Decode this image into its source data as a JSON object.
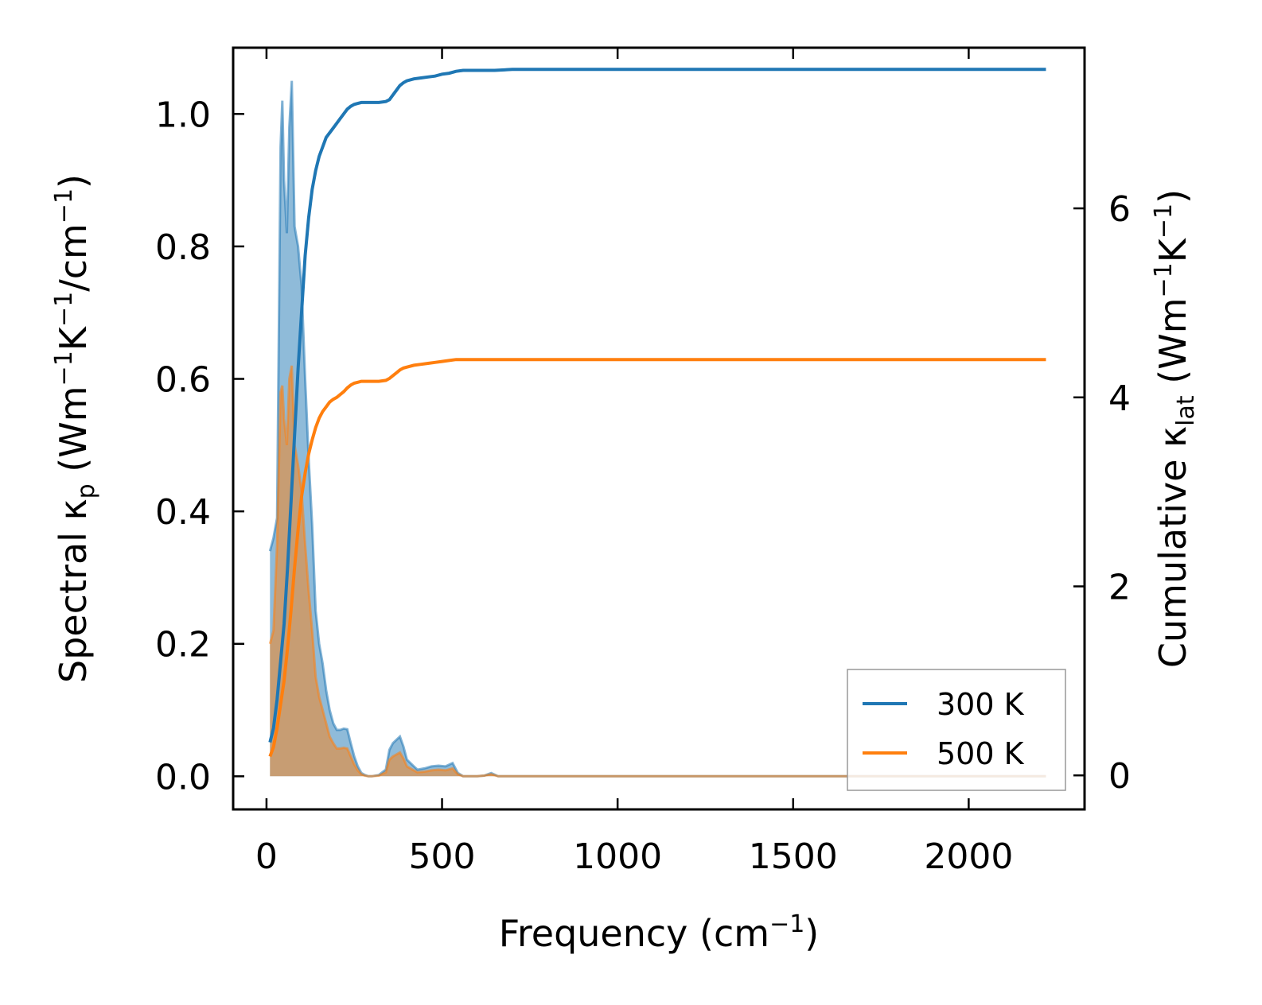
{
  "chart_data": {
    "type": "line",
    "xlabel": "Frequency (cm⁻¹)",
    "ylabel_left": "Spectral κₚ (Wm⁻¹K⁻¹/cm⁻¹)",
    "ylabel_right": "Cumulative κ_lat (Wm⁻¹K⁻¹)",
    "ylabel_left_parts": {
      "pre": "Spectral κ",
      "sub": "p",
      "post": " (Wm",
      "e1": "−1",
      "mid": "K",
      "e2": "−1",
      "end": "/cm",
      "e3": "−1",
      "close": ")"
    },
    "ylabel_right_parts": {
      "pre": "Cumulative κ",
      "sub": "lat",
      "post": " (Wm",
      "e1": "−1",
      "mid": "K",
      "e2": "−1",
      "close": ")"
    },
    "xlabel_parts": {
      "pre": "Frequency (cm",
      "e1": "−1",
      "close": ")"
    },
    "xlim": [
      -95,
      2330
    ],
    "ylim_left": [
      -0.05,
      1.1
    ],
    "ylim_right": [
      -0.36,
      7.7
    ],
    "xticks": [
      0,
      500,
      1000,
      1500,
      2000
    ],
    "yticks_left": [
      0.0,
      0.2,
      0.4,
      0.6,
      0.8,
      1.0
    ],
    "yticks_right": [
      0,
      2,
      4,
      6
    ],
    "legend": {
      "position": "lower-right",
      "entries": [
        "300 K",
        "500 K"
      ]
    },
    "colors": {
      "300 K": "#1f77b4",
      "500 K": "#ff7f0e"
    },
    "spectral": [
      {
        "name": "300 K",
        "x": [
          10,
          20,
          30,
          40,
          45,
          50,
          58,
          65,
          72,
          80,
          90,
          100,
          110,
          120,
          130,
          140,
          150,
          160,
          170,
          180,
          190,
          200,
          210,
          220,
          230,
          240,
          250,
          260,
          270,
          280,
          290,
          300,
          320,
          340,
          350,
          360,
          370,
          380,
          390,
          400,
          410,
          420,
          430,
          450,
          470,
          490,
          510,
          530,
          545,
          560,
          600,
          620,
          640,
          660,
          700,
          2220
        ],
        "y": [
          0.34,
          0.36,
          0.39,
          0.95,
          1.02,
          0.9,
          0.82,
          0.98,
          1.05,
          0.83,
          0.8,
          0.74,
          0.6,
          0.48,
          0.38,
          0.25,
          0.2,
          0.17,
          0.13,
          0.1,
          0.08,
          0.07,
          0.07,
          0.072,
          0.071,
          0.05,
          0.03,
          0.015,
          0.005,
          0.002,
          0.0,
          0.0,
          0.002,
          0.01,
          0.04,
          0.05,
          0.055,
          0.06,
          0.045,
          0.025,
          0.02,
          0.015,
          0.01,
          0.012,
          0.015,
          0.016,
          0.015,
          0.02,
          0.005,
          0.0,
          0.0,
          0.001,
          0.005,
          0.0,
          0.0,
          0.0
        ]
      },
      {
        "name": "500 K",
        "x": [
          10,
          20,
          30,
          40,
          45,
          50,
          58,
          65,
          72,
          80,
          90,
          100,
          110,
          120,
          130,
          140,
          150,
          160,
          170,
          180,
          190,
          200,
          210,
          220,
          230,
          240,
          250,
          260,
          270,
          280,
          290,
          300,
          320,
          340,
          350,
          360,
          370,
          380,
          390,
          400,
          410,
          420,
          430,
          450,
          470,
          490,
          510,
          530,
          545,
          560,
          600,
          620,
          640,
          660,
          700,
          2220
        ],
        "y": [
          0.2,
          0.22,
          0.35,
          0.58,
          0.59,
          0.54,
          0.5,
          0.6,
          0.62,
          0.5,
          0.47,
          0.43,
          0.35,
          0.28,
          0.22,
          0.15,
          0.12,
          0.1,
          0.08,
          0.06,
          0.05,
          0.042,
          0.042,
          0.043,
          0.042,
          0.03,
          0.018,
          0.009,
          0.003,
          0.001,
          0.0,
          0.0,
          0.001,
          0.006,
          0.025,
          0.03,
          0.033,
          0.036,
          0.027,
          0.015,
          0.012,
          0.009,
          0.006,
          0.007,
          0.009,
          0.01,
          0.009,
          0.012,
          0.003,
          0.0,
          0.0,
          0.001,
          0.003,
          0.0,
          0.0,
          0.0
        ]
      }
    ],
    "cumulative": [
      {
        "name": "300 K",
        "x": [
          10,
          20,
          30,
          40,
          50,
          60,
          70,
          80,
          90,
          100,
          110,
          120,
          130,
          140,
          150,
          160,
          170,
          180,
          190,
          200,
          210,
          220,
          230,
          240,
          250,
          260,
          270,
          280,
          290,
          300,
          310,
          320,
          340,
          350,
          360,
          370,
          380,
          390,
          400,
          420,
          440,
          460,
          480,
          500,
          520,
          540,
          560,
          600,
          650,
          700,
          2220
        ],
        "y": [
          0.35,
          0.5,
          0.8,
          1.2,
          1.6,
          2.2,
          2.9,
          3.6,
          4.3,
          4.9,
          5.5,
          5.9,
          6.2,
          6.4,
          6.55,
          6.65,
          6.75,
          6.8,
          6.85,
          6.9,
          6.95,
          7.0,
          7.05,
          7.08,
          7.1,
          7.11,
          7.12,
          7.12,
          7.12,
          7.12,
          7.12,
          7.12,
          7.13,
          7.15,
          7.2,
          7.25,
          7.3,
          7.33,
          7.35,
          7.37,
          7.38,
          7.39,
          7.4,
          7.42,
          7.43,
          7.45,
          7.46,
          7.46,
          7.46,
          7.47,
          7.47
        ]
      },
      {
        "name": "500 K",
        "x": [
          10,
          20,
          30,
          40,
          50,
          60,
          70,
          80,
          90,
          100,
          110,
          120,
          130,
          140,
          150,
          160,
          170,
          180,
          190,
          200,
          210,
          220,
          230,
          240,
          250,
          260,
          270,
          280,
          290,
          300,
          310,
          320,
          340,
          350,
          360,
          370,
          380,
          390,
          400,
          420,
          440,
          460,
          480,
          500,
          520,
          540,
          560,
          600,
          650,
          700,
          2220
        ],
        "y": [
          0.2,
          0.3,
          0.5,
          0.75,
          1.0,
          1.35,
          1.75,
          2.2,
          2.6,
          2.95,
          3.2,
          3.4,
          3.55,
          3.68,
          3.78,
          3.85,
          3.9,
          3.95,
          3.98,
          4.0,
          4.03,
          4.06,
          4.1,
          4.13,
          4.15,
          4.16,
          4.17,
          4.17,
          4.17,
          4.17,
          4.17,
          4.17,
          4.18,
          4.2,
          4.23,
          4.26,
          4.29,
          4.31,
          4.32,
          4.34,
          4.35,
          4.36,
          4.37,
          4.38,
          4.39,
          4.4,
          4.4,
          4.4,
          4.4,
          4.4,
          4.4
        ]
      }
    ]
  }
}
